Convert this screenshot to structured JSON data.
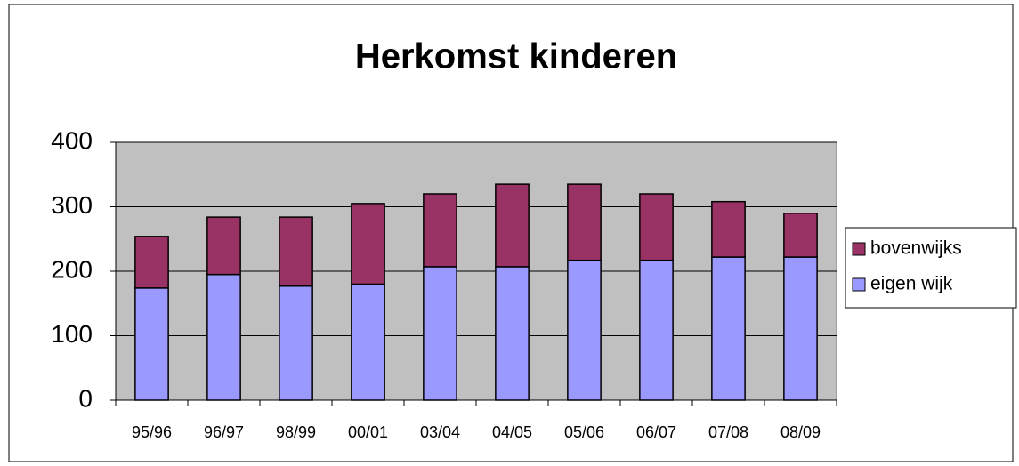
{
  "chart_data": {
    "type": "stacked_bar",
    "title": "Herkomst kinderen",
    "categories": [
      "95/96",
      "96/97",
      "98/99",
      "00/01",
      "03/04",
      "04/05",
      "05/06",
      "06/07",
      "07/08",
      "08/09"
    ],
    "series": [
      {
        "name": "eigen wijk",
        "color": "#9999ff",
        "values": [
          174,
          195,
          177,
          180,
          207,
          207,
          217,
          217,
          222,
          222
        ]
      },
      {
        "name": "bovenwijks",
        "color": "#993366",
        "values": [
          80,
          89,
          107,
          125,
          113,
          128,
          118,
          103,
          86,
          68
        ]
      }
    ],
    "ylim": [
      0,
      400
    ],
    "yticks": [
      0,
      100,
      200,
      300,
      400
    ],
    "grid": true,
    "legend": "right"
  }
}
